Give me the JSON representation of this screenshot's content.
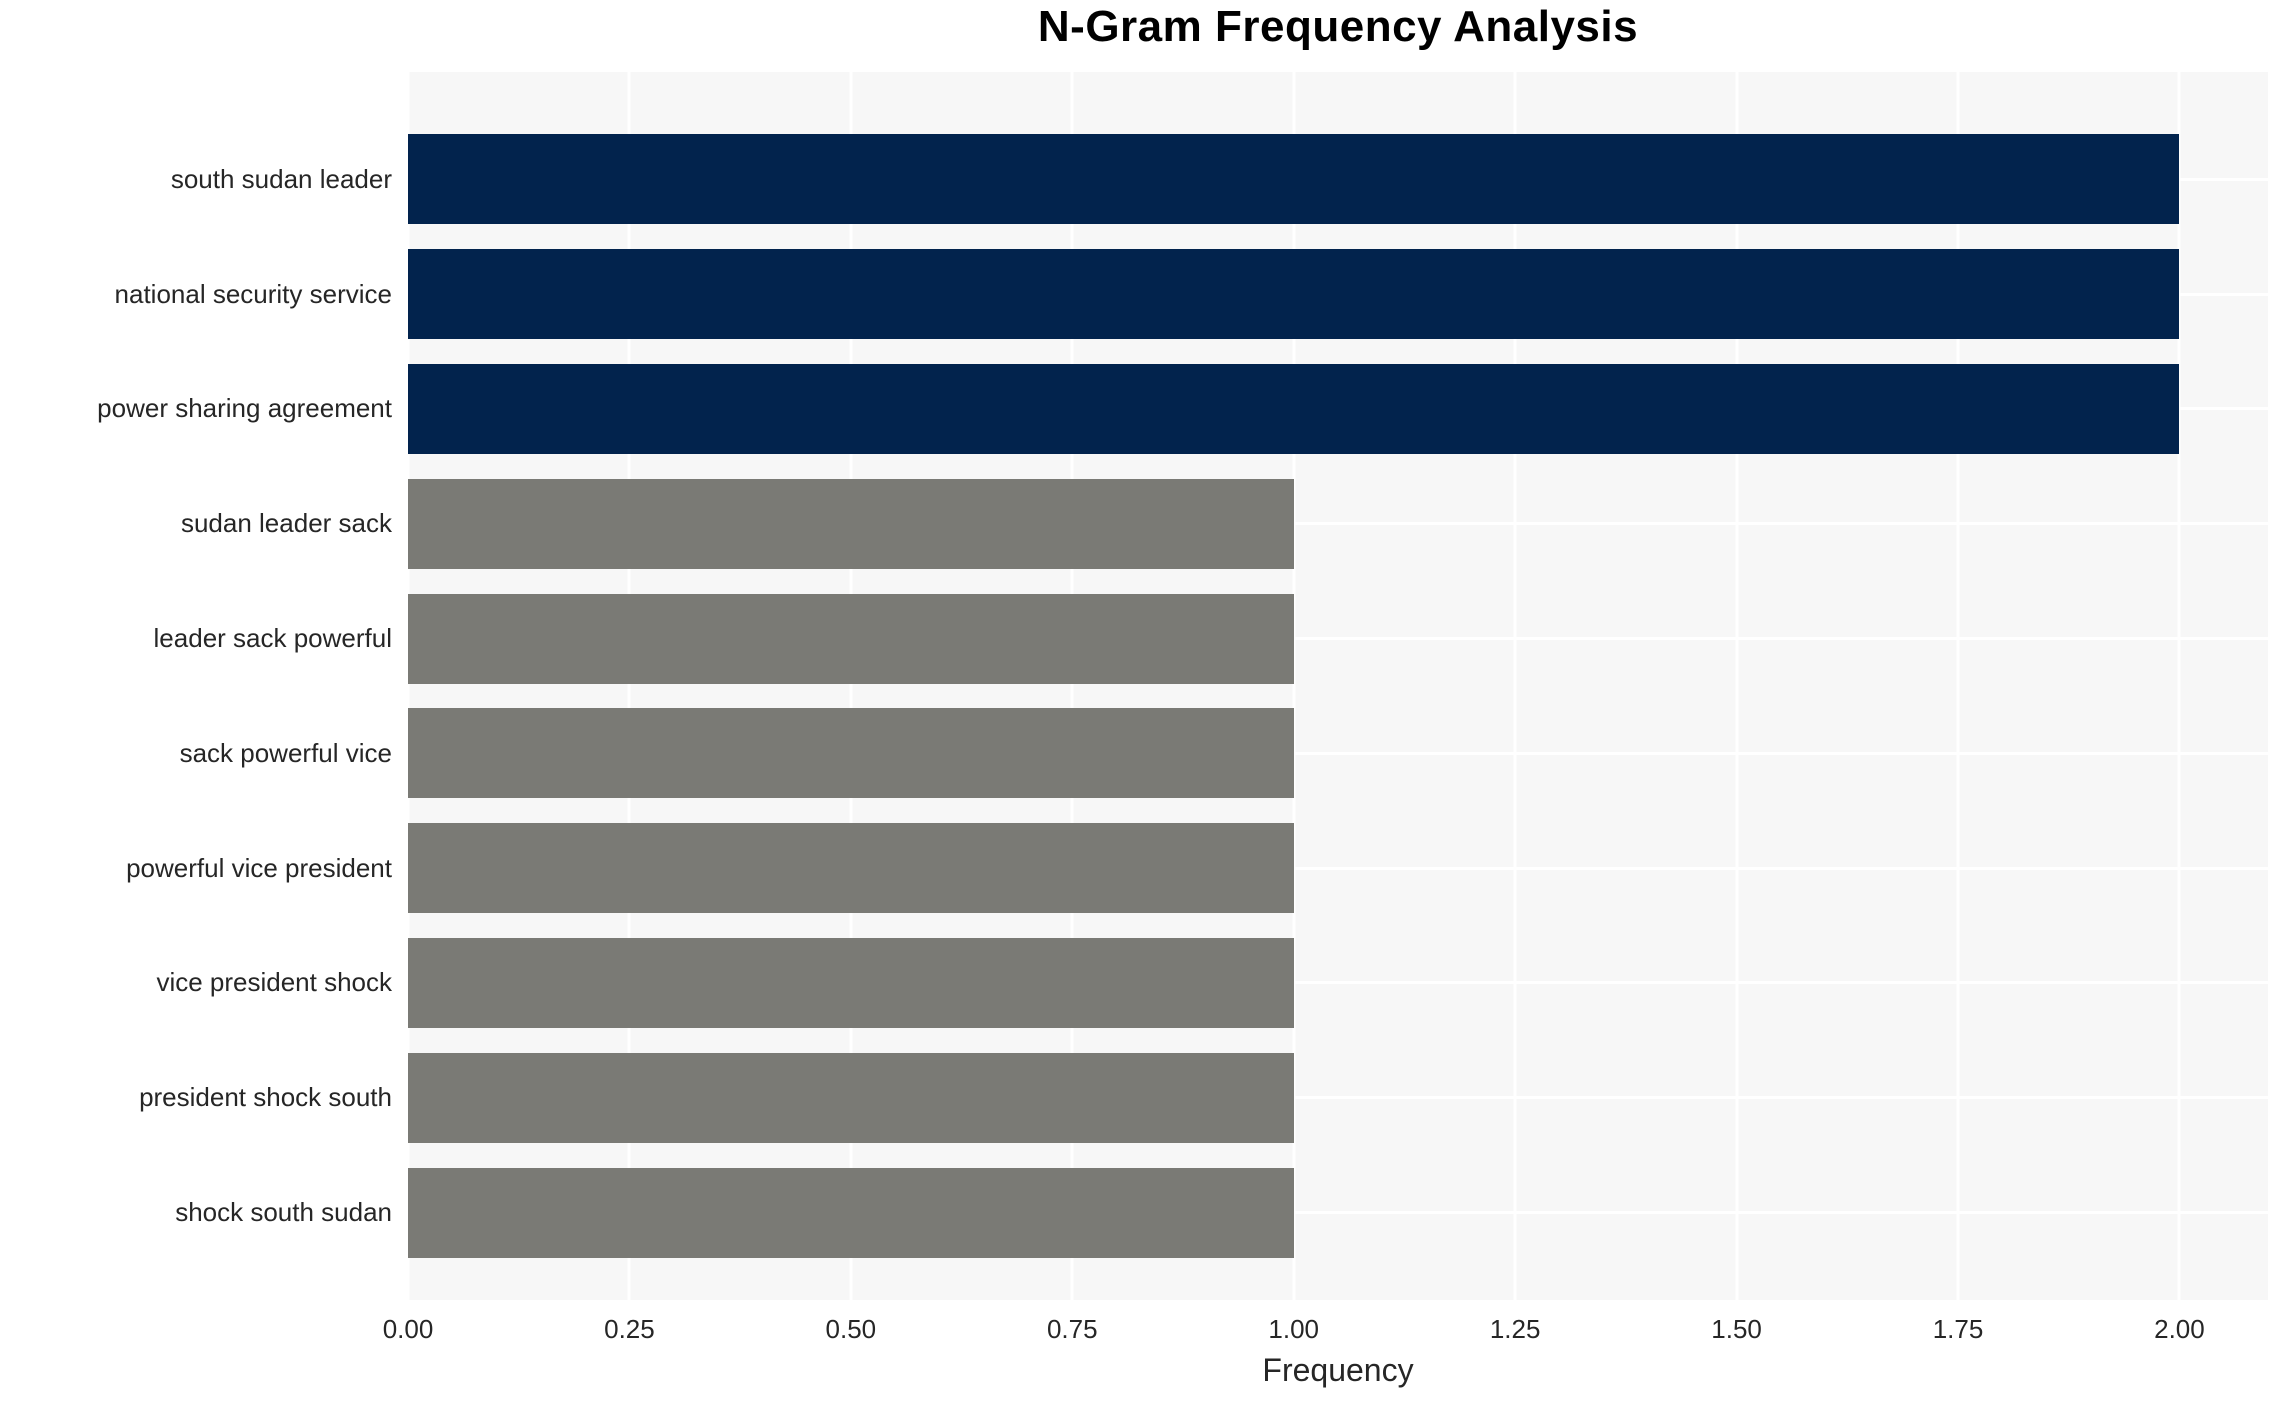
{
  "chart_data": {
    "type": "bar",
    "orientation": "horizontal",
    "title": "N-Gram Frequency Analysis",
    "xlabel": "Frequency",
    "ylabel": "",
    "categories": [
      "south sudan leader",
      "national security service",
      "power sharing agreement",
      "sudan leader sack",
      "leader sack powerful",
      "sack powerful vice",
      "powerful vice president",
      "vice president shock",
      "president shock south",
      "shock south sudan"
    ],
    "values": [
      2,
      2,
      2,
      1,
      1,
      1,
      1,
      1,
      1,
      1
    ],
    "bar_colors": [
      "#02234d",
      "#02234d",
      "#02234d",
      "#7a7a75",
      "#7a7a75",
      "#7a7a75",
      "#7a7a75",
      "#7a7a75",
      "#7a7a75",
      "#7a7a75"
    ],
    "xticks": {
      "values": [
        0,
        0.25,
        0.5,
        0.75,
        1.0,
        1.25,
        1.5,
        1.75,
        2.0
      ],
      "labels": [
        "0.00",
        "0.25",
        "0.50",
        "0.75",
        "1.00",
        "1.25",
        "1.50",
        "1.75",
        "2.00"
      ]
    },
    "xlim": [
      0,
      2.1
    ],
    "grid": true,
    "legend": false,
    "colors": {
      "high_frequency_bar": "#02234d",
      "low_frequency_bar": "#7a7a75",
      "plot_background": "#f7f7f7",
      "gridline": "#ffffff",
      "tick_text": "#262626",
      "title_text": "#000000"
    }
  }
}
